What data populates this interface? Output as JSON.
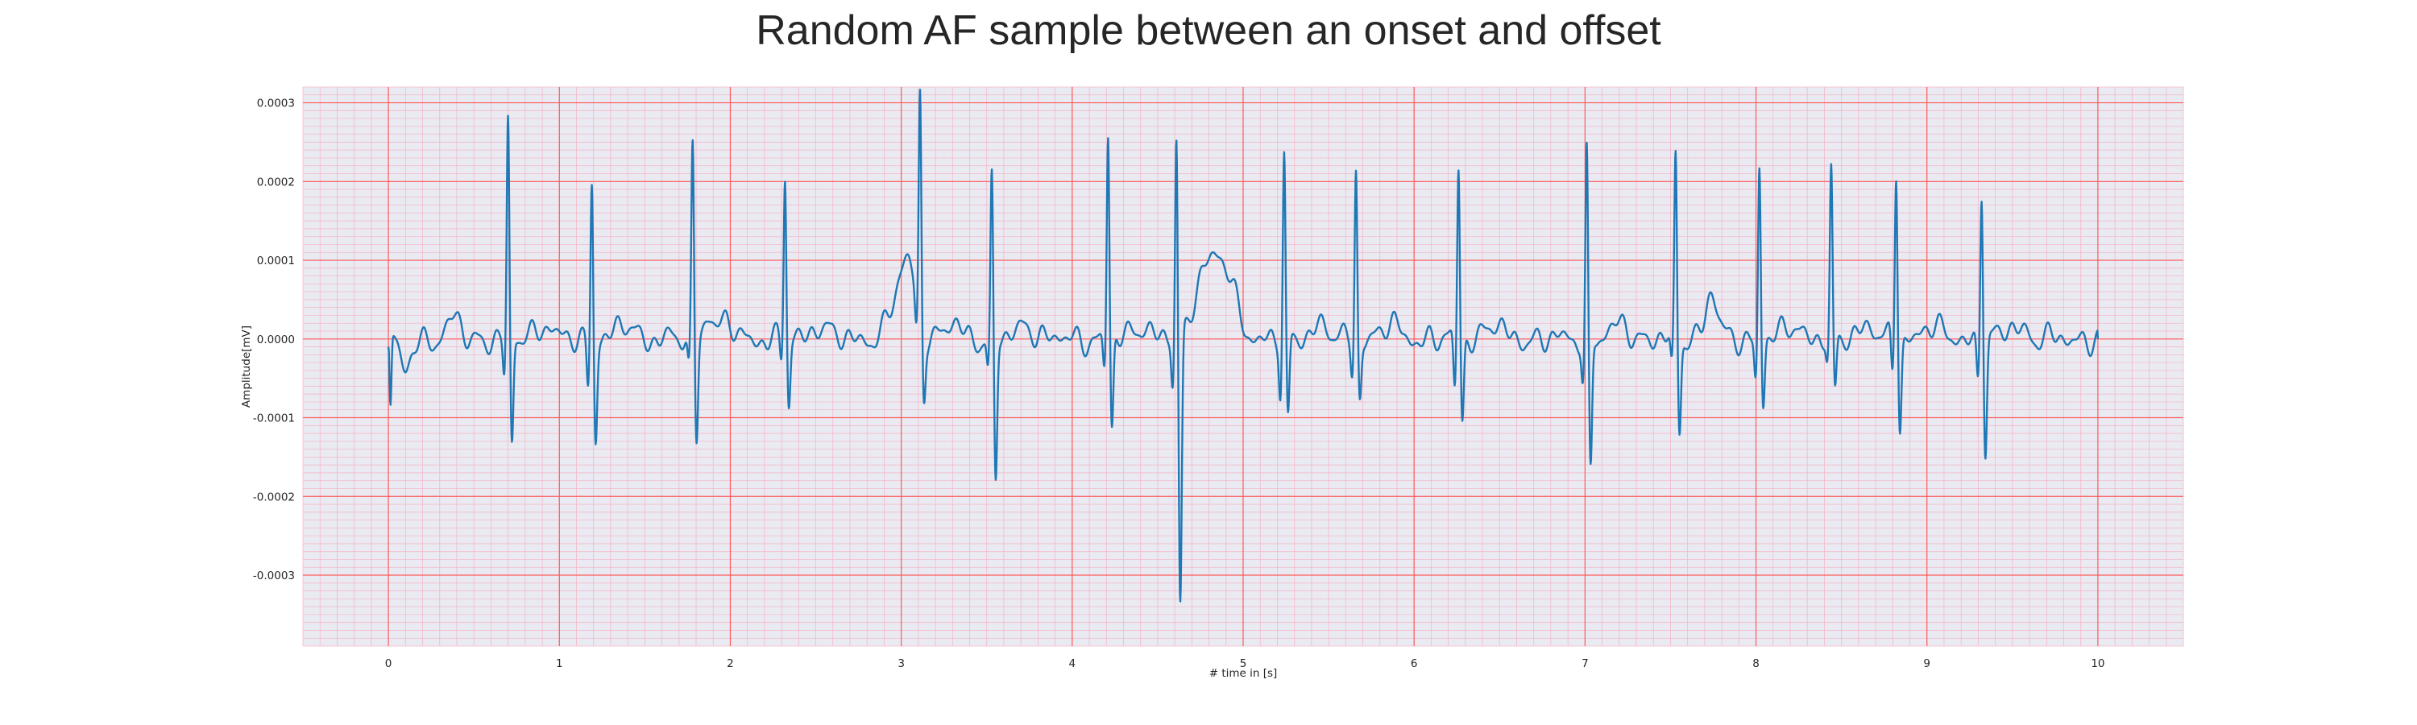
{
  "chart_data": {
    "type": "line",
    "title": "Random AF sample between an onset and offset",
    "xlabel": "# time in [s]",
    "ylabel": "Amplitude[mV]",
    "xlim": [
      -0.5,
      10.5
    ],
    "ylim": [
      -0.00039,
      0.00032
    ],
    "x_ticks": [
      0,
      1,
      2,
      3,
      4,
      5,
      6,
      7,
      8,
      9,
      10
    ],
    "y_ticks": [
      0.0003,
      0.0002,
      0.0001,
      0.0,
      -0.0001,
      -0.0002,
      -0.0003
    ],
    "y_tick_labels": [
      "0.0003",
      "0.0002",
      "0.0001",
      "0.0000",
      "-0.0001",
      "-0.0002",
      "-0.0003"
    ],
    "grid": "major red lines, minor pink lines",
    "colors": {
      "line": "#1f77b4",
      "plot_background": "#eaeaf2",
      "major_grid": "#ff5a5a",
      "minor_grid": "#f4b8c8",
      "text": "#262626"
    },
    "beats": [
      {
        "t": 0.7,
        "r": 0.00028,
        "s": -0.00014,
        "q": -5e-05
      },
      {
        "t": 1.19,
        "r": 0.00021,
        "s": -0.000125,
        "q": -6e-05
      },
      {
        "t": 1.78,
        "r": 0.00025,
        "s": -0.00013,
        "q": -4e-05
      },
      {
        "t": 2.32,
        "r": 0.00021,
        "s": -8.5e-05,
        "q": -3e-05
      },
      {
        "t": 3.11,
        "r": 0.00029,
        "s": -8e-05,
        "q": -4e-05
      },
      {
        "t": 3.53,
        "r": 0.00021,
        "s": -0.000185,
        "q": -4e-05
      },
      {
        "t": 4.21,
        "r": 0.000265,
        "s": -0.00012,
        "q": -4e-05
      },
      {
        "t": 4.61,
        "r": 0.000265,
        "s": -0.00035,
        "q": -6e-05
      },
      {
        "t": 5.24,
        "r": 0.000235,
        "s": -0.00011,
        "q": -7e-05
      },
      {
        "t": 5.66,
        "r": 0.00022,
        "s": -7.5e-05,
        "q": -4e-05
      },
      {
        "t": 6.26,
        "r": 0.000225,
        "s": -0.000105,
        "q": -7e-05
      },
      {
        "t": 7.01,
        "r": 0.000245,
        "s": -0.00017,
        "q": -5e-05
      },
      {
        "t": 7.53,
        "r": 0.000235,
        "s": -0.00012,
        "q": -4e-05
      },
      {
        "t": 8.02,
        "r": 0.000225,
        "s": -8.5e-05,
        "q": -5e-05
      },
      {
        "t": 8.44,
        "r": 0.00021,
        "s": -7.5e-05,
        "q": -3e-05
      },
      {
        "t": 8.82,
        "r": 0.00022,
        "s": -0.000115,
        "q": -5e-05
      },
      {
        "t": 9.32,
        "r": 0.0002,
        "s": -0.000145,
        "q": -5e-05
      }
    ],
    "start": {
      "t": 0.0,
      "value": -1e-05,
      "dip": -9.5e-05
    },
    "end": {
      "t": 10.0,
      "value": 0.0
    },
    "waves": [
      {
        "t": 3.0,
        "amp": 6e-05,
        "width": 0.06
      },
      {
        "t": 3.05,
        "amp": 5.5e-05,
        "width": 0.04
      },
      {
        "t": 4.88,
        "amp": 9e-05,
        "width": 0.07
      },
      {
        "t": 4.75,
        "amp": 6e-05,
        "width": 0.05
      },
      {
        "t": 0.39,
        "amp": 3e-05,
        "width": 0.03
      },
      {
        "t": 1.87,
        "amp": 3e-05,
        "width": 0.03
      },
      {
        "t": 7.74,
        "amp": 4e-05,
        "width": 0.03
      }
    ]
  }
}
